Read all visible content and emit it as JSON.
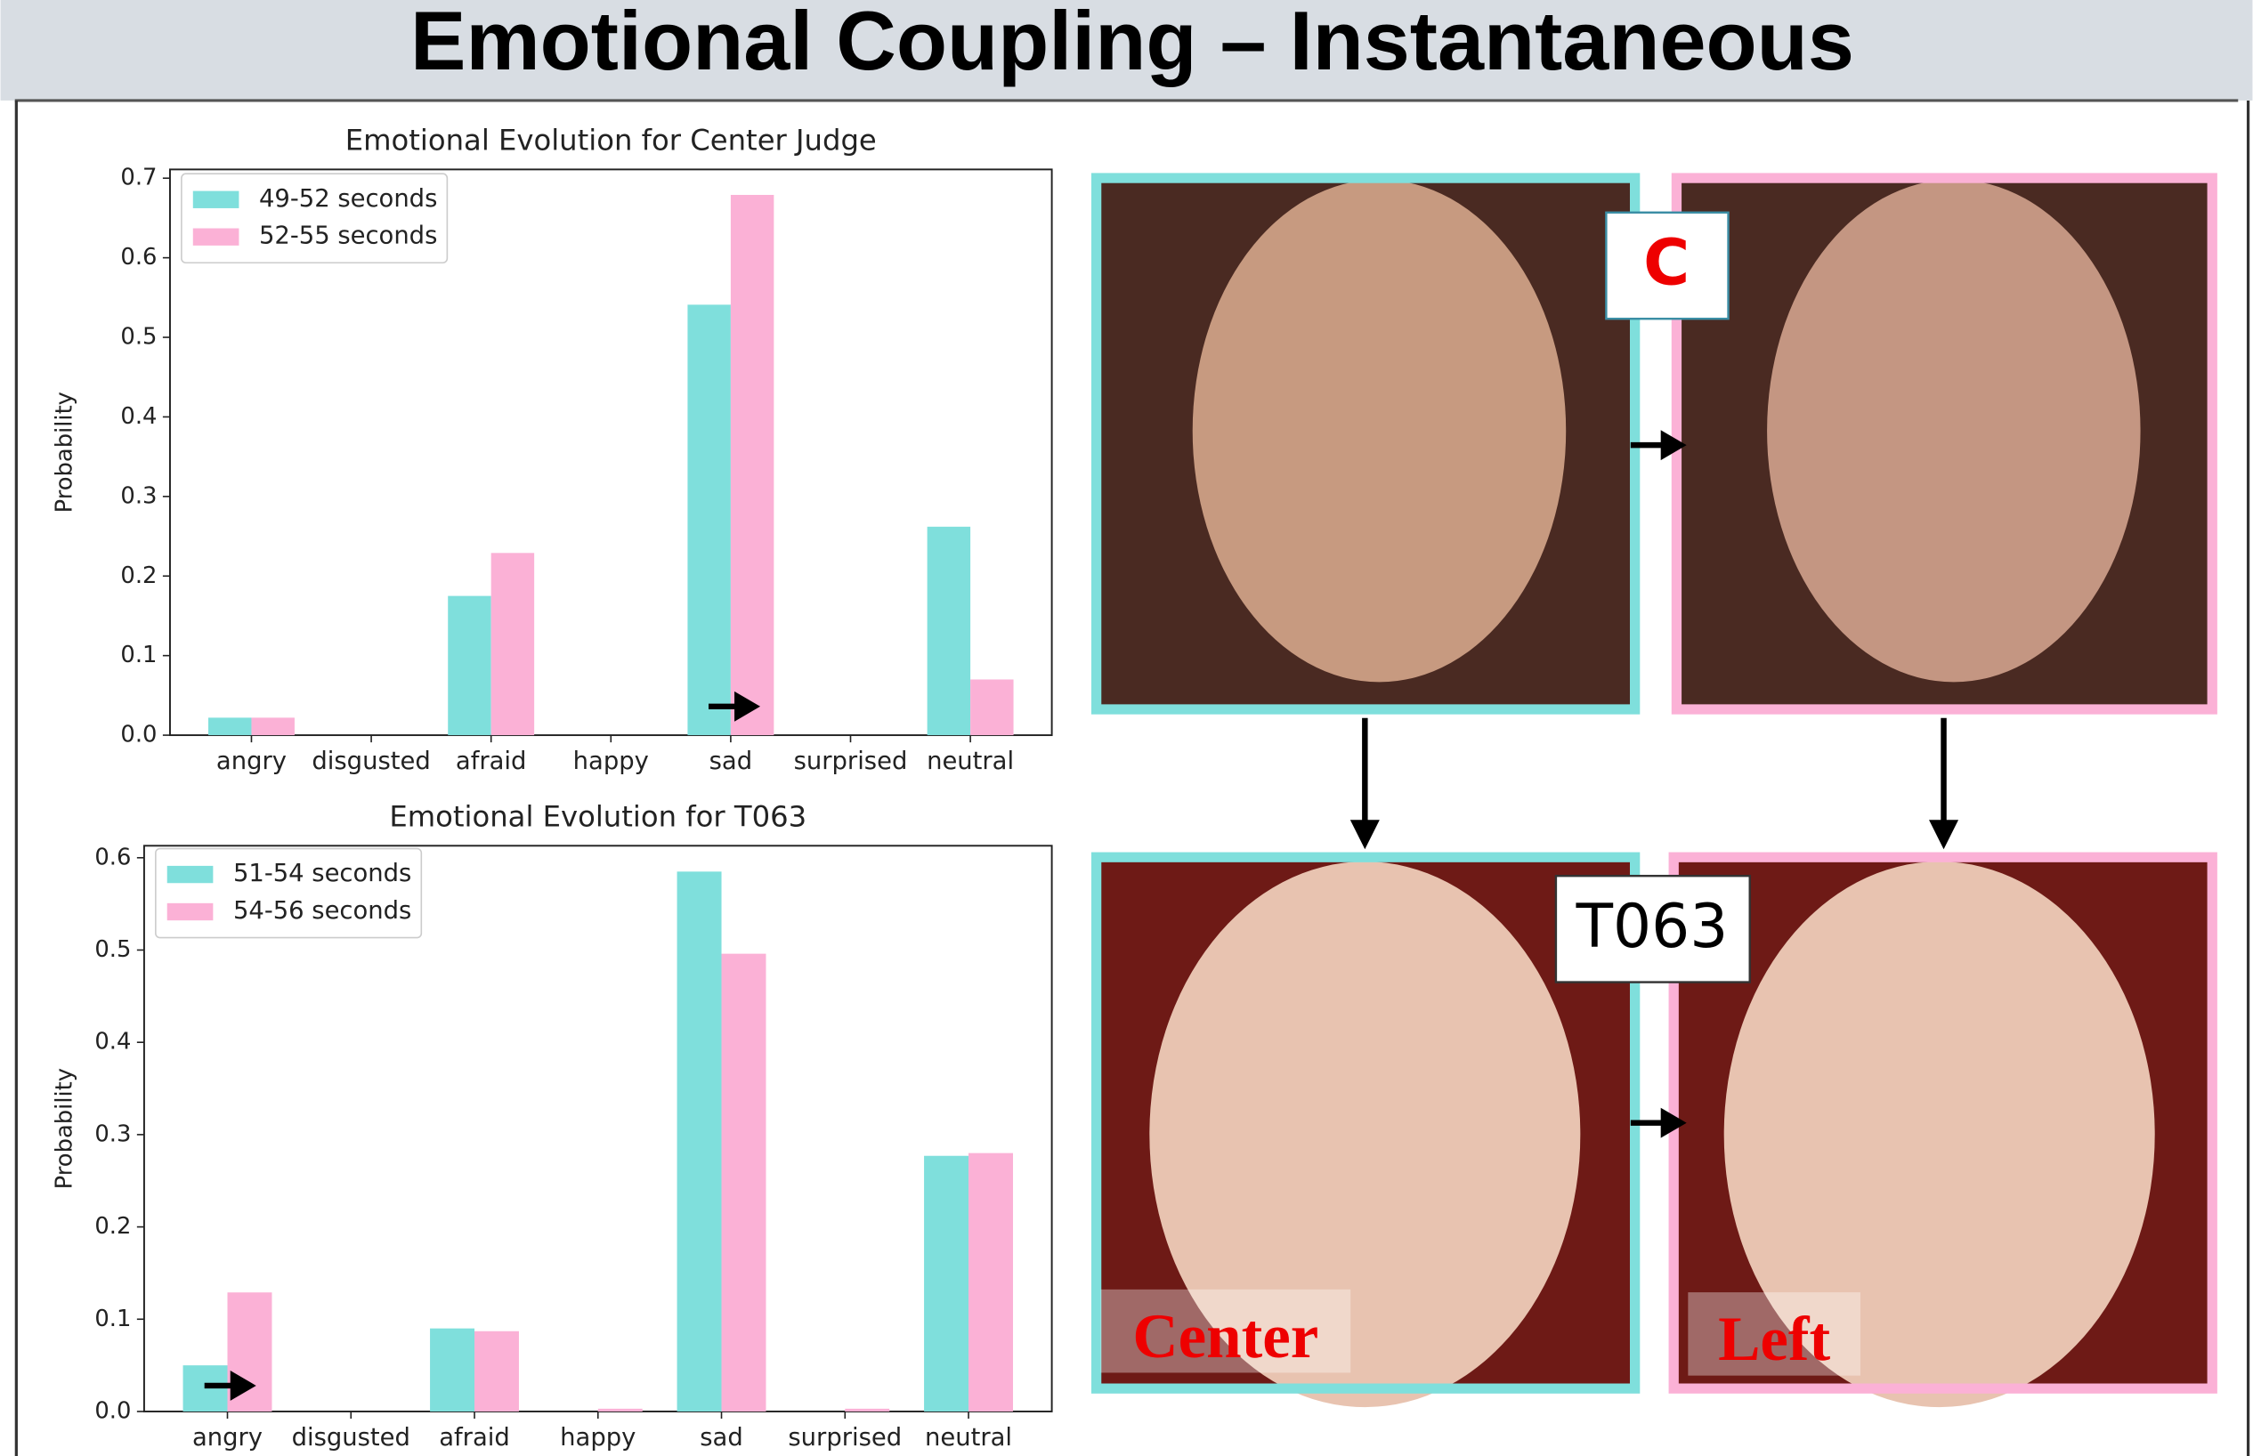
{
  "title": "Emotional Coupling – Instantaneous",
  "chart_data": [
    {
      "type": "bar",
      "title": "Emotional Evolution for Center Judge",
      "y_label": "Probability",
      "categories": [
        "angry",
        "disgusted",
        "afraid",
        "happy",
        "sad",
        "surprised",
        "neutral"
      ],
      "series": [
        {
          "name": "49-52 seconds",
          "color": "#7fdfdc",
          "values": [
            0.022,
            0,
            0.175,
            0,
            0.541,
            0,
            0.262
          ]
        },
        {
          "name": "52-55 seconds",
          "color": "#fbb1d6",
          "values": [
            0.022,
            0,
            0.229,
            0,
            0.679,
            0,
            0.07
          ]
        }
      ],
      "ylim": [
        0,
        0.711
      ],
      "yticks": [
        {
          "value": 0,
          "label": "0.0"
        },
        0.1,
        0.2,
        0.3,
        0.4,
        0.5,
        0.6,
        0.7
      ],
      "legend": "upper left"
    },
    {
      "type": "bar",
      "title": "Emotional Evolution for T063",
      "y_label": "Probability",
      "categories": [
        "angry",
        "disgusted",
        "afraid",
        "happy",
        "sad",
        "surprised",
        "neutral"
      ],
      "series": [
        {
          "name": "51-54 seconds",
          "color": "#7fdfdc",
          "values": [
            0.05,
            0,
            0.09,
            0,
            0.585,
            0,
            0.277
          ]
        },
        {
          "name": "54-56 seconds",
          "color": "#fbb1d6",
          "values": [
            0.129,
            0,
            0.087,
            0.003,
            0.496,
            0.003,
            0.28
          ]
        }
      ],
      "ylim": [
        0,
        0.613
      ],
      "yticks": [
        {
          "value": 0,
          "label": "0.0"
        },
        0.1,
        0.2,
        0.3,
        0.4,
        0.5,
        0.6
      ],
      "legend": "upper left"
    }
  ],
  "photo_labels": {
    "judge": "C",
    "target": "T063",
    "center": "Center",
    "left": "Left"
  }
}
